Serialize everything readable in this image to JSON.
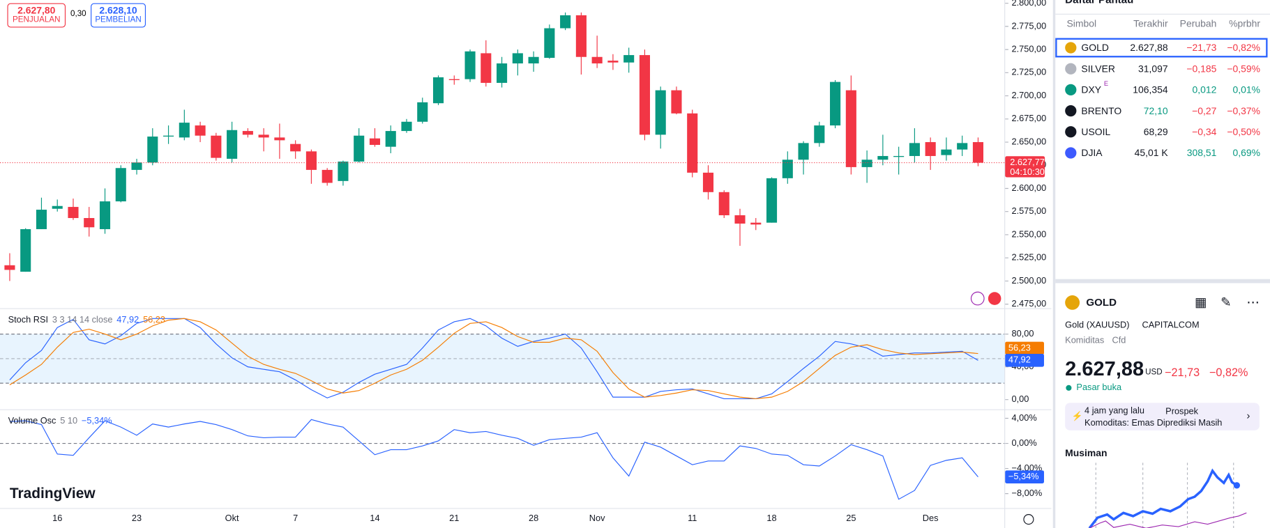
{
  "order_panel": {
    "sell_price": "2.627,80",
    "sell_label": "PENJUALAN",
    "spread": "0,30",
    "buy_price": "2.628,10",
    "buy_label": "PEMBELIAN"
  },
  "logo": "TradingView",
  "chart_data": [
    {
      "type": "candlestick",
      "up_color": "#089981",
      "down_color": "#f23645",
      "categories": [
        null,
        null,
        null,
        "16",
        null,
        null,
        null,
        null,
        "23",
        null,
        null,
        null,
        null,
        null,
        "Okt",
        null,
        null,
        null,
        "7",
        null,
        null,
        null,
        null,
        "14",
        null,
        null,
        null,
        null,
        "21",
        null,
        null,
        null,
        null,
        "28",
        null,
        null,
        null,
        "Nov",
        null,
        null,
        null,
        null,
        null,
        "11",
        null,
        null,
        null,
        null,
        "18",
        null,
        null,
        null,
        null,
        "25",
        null,
        null,
        null,
        null,
        "Des",
        null,
        null,
        null
      ],
      "open": [
        2517,
        2510,
        2556,
        2578,
        2580,
        2568,
        2556,
        2586,
        2620,
        2628,
        2656,
        2655,
        2668,
        2657,
        2632,
        2662,
        2658,
        2655,
        2648,
        2640,
        2620,
        2608,
        2629,
        2654,
        2645,
        2662,
        2672,
        2692,
        2718,
        2718,
        2746,
        2714,
        2735,
        2735,
        2741,
        2773,
        2787,
        2742,
        2738,
        2736,
        2744,
        2658,
        2706,
        2681,
        2617,
        2596,
        2571,
        2563,
        2563,
        2611,
        2631,
        2649,
        2668,
        2706,
        2623,
        2631,
        2634,
        2635,
        2650,
        2636,
        2642,
        2650
      ],
      "high": [
        2530,
        2557,
        2590,
        2588,
        2589,
        2580,
        2600,
        2625,
        2632,
        2665,
        2668,
        2685,
        2672,
        2660,
        2672,
        2665,
        2665,
        2670,
        2652,
        2642,
        2622,
        2630,
        2665,
        2665,
        2668,
        2675,
        2698,
        2722,
        2722,
        2750,
        2760,
        2742,
        2750,
        2748,
        2777,
        2790,
        2790,
        2765,
        2745,
        2752,
        2750,
        2710,
        2710,
        2685,
        2625,
        2598,
        2578,
        2568,
        2612,
        2640,
        2651,
        2672,
        2717,
        2722,
        2641,
        2658,
        2645,
        2665,
        2655,
        2655,
        2657,
        2655
      ],
      "low": [
        2500,
        2510,
        2556,
        2575,
        2566,
        2548,
        2551,
        2585,
        2615,
        2625,
        2648,
        2652,
        2650,
        2630,
        2628,
        2655,
        2640,
        2632,
        2632,
        2605,
        2603,
        2603,
        2628,
        2645,
        2638,
        2660,
        2670,
        2690,
        2712,
        2715,
        2710,
        2709,
        2722,
        2726,
        2740,
        2771,
        2723,
        2730,
        2728,
        2725,
        2652,
        2643,
        2680,
        2612,
        2588,
        2568,
        2538,
        2555,
        2563,
        2605,
        2615,
        2645,
        2665,
        2615,
        2606,
        2625,
        2615,
        2628,
        2620,
        2630,
        2635,
        2624
      ],
      "close": [
        2512,
        2556,
        2577,
        2581,
        2568,
        2558,
        2586,
        2622,
        2628,
        2656,
        2657,
        2671,
        2657,
        2633,
        2663,
        2658,
        2655,
        2652,
        2640,
        2620,
        2606,
        2629,
        2657,
        2647,
        2662,
        2672,
        2693,
        2720,
        2717,
        2748,
        2714,
        2735,
        2746,
        2742,
        2773,
        2787,
        2742,
        2735,
        2736,
        2744,
        2658,
        2706,
        2681,
        2617,
        2596,
        2571,
        2562,
        2561,
        2611,
        2631,
        2649,
        2668,
        2715,
        2623,
        2631,
        2635,
        2635,
        2649,
        2635,
        2642,
        2649,
        2627.77
      ],
      "ylim": [
        2470.6,
        2803.5
      ],
      "yticks": [
        {
          "value": 2800,
          "label": "2.800,00"
        },
        {
          "value": 2775,
          "label": "2.775,00"
        },
        {
          "value": 2750,
          "label": "2.750,00"
        },
        {
          "value": 2725,
          "label": "2.725,00"
        },
        {
          "value": 2700,
          "label": "2.700,00"
        },
        {
          "value": 2675,
          "label": "2.675,00"
        },
        {
          "value": 2650,
          "label": "2.650,00"
        },
        {
          "value": 2625,
          "label": "2.625,00"
        },
        {
          "value": 2600,
          "label": "2.600,00"
        },
        {
          "value": 2575,
          "label": "2.575,00"
        },
        {
          "value": 2550,
          "label": "2.550,00"
        },
        {
          "value": 2525,
          "label": "2.525,00"
        },
        {
          "value": 2500,
          "label": "2.500,00"
        },
        {
          "value": 2475,
          "label": "2.475,00"
        }
      ],
      "last_price": 2627.77,
      "last_price_label": "2.627,77",
      "countdown": "04:10:30"
    },
    {
      "type": "line",
      "title": "Stoch RSI",
      "params": "3 3 14 14 close",
      "ylim": [
        -11.9,
        110.6
      ],
      "yticks": [
        {
          "value": 0,
          "label": "0,00"
        },
        {
          "value": 40,
          "label": "40,00"
        },
        {
          "value": 80,
          "label": "80,00"
        }
      ],
      "band": [
        20,
        80
      ],
      "midline": 50,
      "series": [
        {
          "color": "#2962ff",
          "values": [
            24,
            45,
            60,
            88,
            98,
            73,
            68,
            78,
            93,
            99,
            99,
            99,
            88,
            68,
            51,
            40,
            37,
            34,
            24,
            12,
            2,
            9,
            21,
            31,
            37,
            43,
            63,
            85,
            95,
            99,
            90,
            75,
            65,
            71,
            75,
            80,
            63,
            34,
            3,
            3,
            3,
            10,
            12,
            13,
            7,
            1,
            1,
            1,
            7,
            22,
            38,
            53,
            71,
            68,
            63,
            53,
            55,
            57,
            57,
            58,
            59,
            47.92
          ],
          "last_label": "47,92"
        },
        {
          "color": "#f57c00",
          "values": [
            18,
            30,
            43,
            64,
            82,
            86,
            80,
            73,
            80,
            90,
            97,
            99,
            95,
            85,
            69,
            53,
            43,
            37,
            32,
            23,
            13,
            8,
            11,
            20,
            30,
            37,
            48,
            64,
            81,
            93,
            95,
            88,
            77,
            70,
            70,
            75,
            73,
            59,
            33,
            13,
            3,
            5,
            8,
            12,
            11,
            7,
            3,
            1,
            3,
            10,
            22,
            38,
            54,
            64,
            67,
            61,
            57,
            55,
            56,
            57,
            58,
            56.23
          ],
          "last_label": "56,23"
        }
      ]
    },
    {
      "type": "line",
      "title": "Volume Osc",
      "params": "5 10",
      "ylim": [
        -10.3,
        5.3
      ],
      "yticks": [
        {
          "value": 4,
          "label": "4,00%"
        },
        {
          "value": 0,
          "label": "0,00%"
        },
        {
          "value": -4,
          "label": "−4,00%"
        },
        {
          "value": -8,
          "label": "−8,00%"
        }
      ],
      "baseline": 0,
      "series": [
        {
          "color": "#2962ff",
          "values": [
            3.5,
            3.6,
            3,
            -1.7,
            -1.9,
            0.9,
            3.6,
            2.6,
            1.3,
            3.1,
            2.6,
            3.1,
            3.5,
            3,
            2.2,
            1.2,
            0.9,
            1,
            1,
            3.8,
            3.1,
            2.6,
            0.4,
            -1.8,
            -1,
            -1,
            -0.4,
            0.4,
            2.2,
            1.7,
            1.9,
            1.3,
            0.8,
            -0.3,
            0.6,
            0.8,
            1,
            1.7,
            -2.3,
            -5.2,
            0.2,
            -0.6,
            -2,
            -3.4,
            -2.8,
            -2.8,
            -0.4,
            -0.8,
            -1.7,
            -1.9,
            -3.4,
            -3.6,
            -2,
            -0.2,
            -1,
            -2,
            -8.9,
            -7.5,
            -3.5,
            -2.7,
            -2.3,
            -5.34
          ],
          "last_label": "−5,34%"
        }
      ]
    }
  ],
  "watchlist": {
    "title": "Daftar Pantau",
    "columns": [
      "Simbol",
      "Terakhir",
      "Perubah",
      "%prbhr"
    ],
    "rows": [
      {
        "symbol": "GOLD",
        "last": "2.627,88",
        "change": "−21,73",
        "pct": "−0,82%",
        "color": "#f23645",
        "icon_color": "#e5a50a"
      },
      {
        "symbol": "SILVER",
        "last": "31,097",
        "change": "−0,185",
        "pct": "−0,59%",
        "color": "#f23645",
        "icon_color": "#b2b5be"
      },
      {
        "symbol": "DXY",
        "badge": "E",
        "last": "106,354",
        "change": "0,012",
        "pct": "0,01%",
        "color": "#089981",
        "icon_color": "#089981"
      },
      {
        "symbol": "BRENTO",
        "last": "72,10",
        "last_color": "#089981",
        "change": "−0,27",
        "pct": "−0,37%",
        "color": "#f23645",
        "icon_color": "#131722"
      },
      {
        "symbol": "USOIL",
        "last": "68,29",
        "change": "−0,34",
        "pct": "−0,50%",
        "color": "#f23645",
        "icon_color": "#131722"
      },
      {
        "symbol": "DJIA",
        "last": "45,01 K",
        "change": "308,51",
        "pct": "0,69%",
        "color": "#089981",
        "icon_color": "#3d5afe"
      }
    ]
  },
  "details": {
    "symbol": "GOLD",
    "name": "Gold (XAUUSD)",
    "exchange": "CAPITALCOM",
    "category": "Komiditas",
    "kind": "Cfd",
    "price": "2.627,88",
    "currency": "USD",
    "change": "−21,73",
    "pct": "−0,82%",
    "status": "Pasar buka",
    "news_time": "4 jam yang lalu",
    "news_text": "Prospek Komoditas: Emas Diprediksi Masih Jadi Primadona ...",
    "seasonal": "Musiman"
  }
}
